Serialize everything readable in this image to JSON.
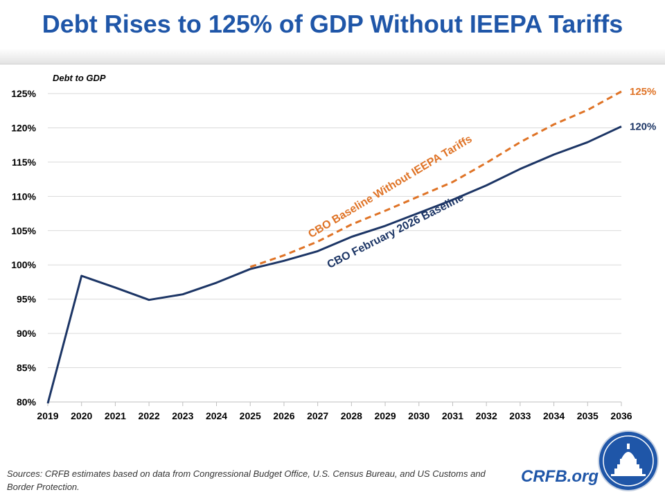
{
  "header": {
    "title": "Debt Rises to 125% of GDP Without IEEPA Tariffs"
  },
  "footer": {
    "sources": "Sources: CRFB estimates based on data from Congressional Budget Office, U.S. Census Bureau, and US Customs and Border Protection.",
    "brand": "CRFB.org"
  },
  "colors": {
    "baseline": "#1c3565",
    "no_tariffs": "#df7326",
    "grid": "#d9d9d9",
    "title": "#1f56a8"
  },
  "chart_data": {
    "type": "line",
    "title": "Debt Rises to 125% of GDP Without IEEPA Tariffs",
    "ylabel": "Debt to GDP",
    "xlabel": "",
    "ylim": [
      80,
      125
    ],
    "yticks": [
      80,
      85,
      90,
      95,
      100,
      105,
      110,
      115,
      120,
      125
    ],
    "ytick_labels": [
      "80%",
      "85%",
      "90%",
      "95%",
      "100%",
      "105%",
      "110%",
      "115%",
      "120%",
      "125%"
    ],
    "categories": [
      "2019",
      "2020",
      "2021",
      "2022",
      "2023",
      "2024",
      "2025",
      "2026",
      "2027",
      "2028",
      "2029",
      "2030",
      "2031",
      "2032",
      "2033",
      "2034",
      "2035",
      "2036"
    ],
    "grid": true,
    "series": [
      {
        "name": "CBO February 2026 Baseline",
        "style": "solid",
        "values": [
          79.8,
          98.4,
          96.7,
          94.9,
          95.7,
          97.4,
          99.4,
          100.6,
          102.0,
          104.1,
          105.7,
          107.6,
          109.5,
          111.6,
          114.0,
          116.1,
          117.9,
          120.2
        ],
        "end_label": "120%"
      },
      {
        "name": "CBO Baseline Without IEEPA Tariffs",
        "style": "dashed",
        "values": [
          null,
          null,
          null,
          null,
          null,
          null,
          99.7,
          101.4,
          103.4,
          105.9,
          107.9,
          110.0,
          112.1,
          114.9,
          117.9,
          120.5,
          122.6,
          125.3
        ],
        "end_label": "125%"
      }
    ]
  }
}
